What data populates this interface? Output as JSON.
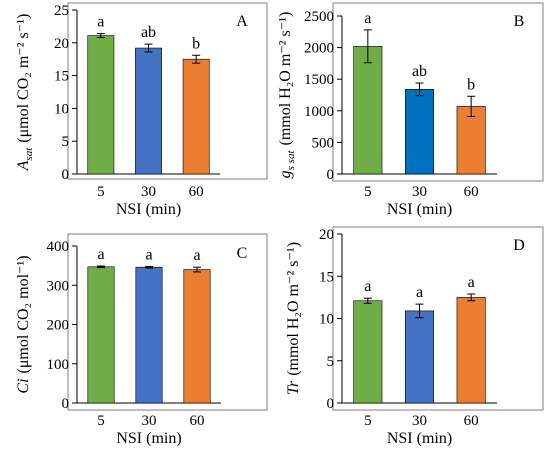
{
  "chart_data": [
    {
      "type": "bar",
      "panel_label": "A",
      "categories": [
        "5",
        "30",
        "60"
      ],
      "values": [
        21.1,
        19.2,
        17.5
      ],
      "errors": [
        0.3,
        0.6,
        0.6
      ],
      "significance": [
        "a",
        "ab",
        "b"
      ],
      "colors": [
        "#70ad47",
        "#4472c4",
        "#ed7d31"
      ],
      "xlabel": "NSI (min)",
      "ylabel": {
        "symbol": "A",
        "sub": "sat",
        "units": "(μmol CO₂ m⁻² s⁻¹)"
      },
      "ylim": [
        0,
        25
      ],
      "ytick_step": 5,
      "yticks": [
        "0",
        "5",
        "10",
        "15",
        "20",
        "25"
      ]
    },
    {
      "type": "bar",
      "panel_label": "B",
      "categories": [
        "5",
        "30",
        "60"
      ],
      "values": [
        2020,
        1340,
        1070
      ],
      "errors": [
        260,
        100,
        160
      ],
      "significance": [
        "a",
        "ab",
        "b"
      ],
      "colors": [
        "#70ad47",
        "#0070c0",
        "#ed7d31"
      ],
      "xlabel": "NSI (min)",
      "ylabel": {
        "symbol": "g",
        "sub": "s sat",
        "units": "(mmol H₂O m⁻² s⁻¹)"
      },
      "ylim": [
        0,
        2500
      ],
      "ytick_step": 500,
      "yticks": [
        "0",
        "500",
        "1000",
        "1500",
        "2000",
        "2500"
      ]
    },
    {
      "type": "bar",
      "panel_label": "C",
      "categories": [
        "5",
        "30",
        "60"
      ],
      "values": [
        347,
        346,
        340
      ],
      "errors": [
        2,
        2,
        6
      ],
      "significance": [
        "a",
        "a",
        "a"
      ],
      "colors": [
        "#70ad47",
        "#4472c4",
        "#ed7d31"
      ],
      "xlabel": "NSI (min)",
      "ylabel": {
        "symbol": "Ci",
        "sub": "",
        "units": "(μmol CO₂ mol⁻¹)"
      },
      "ylim": [
        0,
        400
      ],
      "ytick_step": 100,
      "yticks": [
        "0",
        "100",
        "200",
        "300",
        "400"
      ]
    },
    {
      "type": "bar",
      "panel_label": "D",
      "categories": [
        "5",
        "30",
        "60"
      ],
      "values": [
        12.1,
        10.9,
        12.5
      ],
      "errors": [
        0.3,
        0.8,
        0.4
      ],
      "significance": [
        "a",
        "a",
        "a"
      ],
      "colors": [
        "#70ad47",
        "#4472c4",
        "#ed7d31"
      ],
      "xlabel": "NSI (min)",
      "ylabel": {
        "symbol": "Tr",
        "sub": "",
        "units": "(mmol H₂O m⁻² s⁻¹)"
      },
      "ylim": [
        0,
        20
      ],
      "ytick_step": 5,
      "yticks": [
        "0",
        "5",
        "10",
        "15",
        "20"
      ]
    }
  ]
}
